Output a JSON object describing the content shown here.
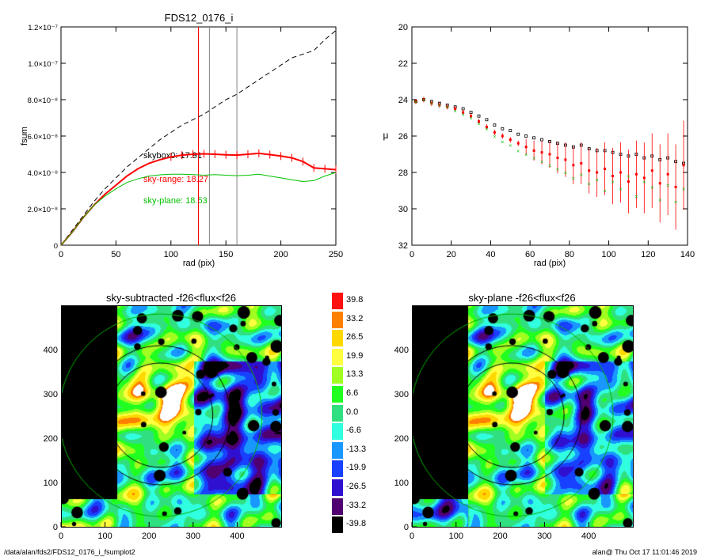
{
  "chart_data": [
    {
      "type": "line",
      "title": "FDS12_0176_i",
      "xlabel": "rad (pix)",
      "ylabel": "fsum",
      "xlim": [
        0,
        250
      ],
      "ylim": [
        0,
        1.2e-07
      ],
      "xticks": [
        "0",
        "50",
        "100",
        "150",
        "200",
        "250"
      ],
      "yticks": [
        {
          "value": 0,
          "label": "0"
        },
        {
          "value": 2e-08,
          "label": "2.0×10⁻⁸"
        },
        {
          "value": 4e-08,
          "label": "4.0×10⁻⁸"
        },
        {
          "value": 6e-08,
          "label": "6.0×10⁻⁸"
        },
        {
          "value": 8e-08,
          "label": "8.0×10⁻⁸"
        },
        {
          "value": 1e-07,
          "label": "1.0×10⁻⁷"
        },
        {
          "value": 1.2e-07,
          "label": "1.2×10⁻⁷"
        }
      ],
      "vlines": [
        {
          "x": 125,
          "color": "#ff0000"
        },
        {
          "x": 135,
          "color": "#808080"
        },
        {
          "x": 160,
          "color": "#808080"
        }
      ],
      "annotations": [
        {
          "text": "skybox0: 17.91",
          "color": "#000000"
        },
        {
          "text": "sky-range: 18.27",
          "color": "#ff0000"
        },
        {
          "text": "sky-plane: 18.53",
          "color": "#00c000"
        }
      ],
      "series": [
        {
          "style": "dashed",
          "color": "#000000",
          "x": [
            0,
            10,
            20,
            30,
            40,
            50,
            60,
            70,
            80,
            90,
            100,
            110,
            120,
            130,
            140,
            150,
            160,
            170,
            180,
            190,
            200,
            210,
            220,
            230,
            240,
            250
          ],
          "y": [
            0,
            8e-09,
            1.6e-08,
            2.4e-08,
            3.1e-08,
            3.7e-08,
            4.3e-08,
            4.8e-08,
            5.3e-08,
            5.8e-08,
            6.2e-08,
            6.6e-08,
            6.9e-08,
            7.2e-08,
            7.6e-08,
            8e-08,
            8.3e-08,
            8.7e-08,
            9.1e-08,
            9.5e-08,
            9.9e-08,
            1.03e-07,
            1.05e-07,
            1.07e-07,
            1.13e-07,
            1.18e-07
          ]
        },
        {
          "style": "errorbar",
          "color": "#ff0000",
          "x": [
            0,
            10,
            20,
            30,
            40,
            50,
            60,
            70,
            80,
            90,
            100,
            110,
            120,
            130,
            140,
            150,
            160,
            170,
            180,
            190,
            200,
            210,
            220,
            230,
            240,
            250
          ],
          "y": [
            0,
            7e-09,
            1.5e-08,
            2.2e-08,
            2.8e-08,
            3.3e-08,
            3.8e-08,
            4.2e-08,
            4.5e-08,
            4.7e-08,
            4.85e-08,
            4.95e-08,
            5e-08,
            5.02e-08,
            5e-08,
            4.97e-08,
            4.95e-08,
            5e-08,
            5.05e-08,
            4.98e-08,
            4.9e-08,
            4.8e-08,
            4.6e-08,
            4.25e-08,
            4.2e-08,
            4.15e-08
          ]
        },
        {
          "style": "solid",
          "color": "#00c000",
          "x": [
            0,
            10,
            20,
            30,
            40,
            50,
            60,
            70,
            80,
            90,
            100,
            110,
            120,
            130,
            140,
            150,
            160,
            170,
            180,
            190,
            200,
            210,
            220,
            230,
            240,
            250
          ],
          "y": [
            0,
            7e-09,
            1.5e-08,
            2.2e-08,
            2.7e-08,
            3.1e-08,
            3.45e-08,
            3.65e-08,
            3.8e-08,
            3.87e-08,
            3.9e-08,
            3.9e-08,
            3.88e-08,
            3.85e-08,
            3.88e-08,
            3.85e-08,
            3.82e-08,
            3.85e-08,
            3.9e-08,
            3.8e-08,
            3.7e-08,
            3.6e-08,
            3.5e-08,
            3.55e-08,
            3.8e-08,
            4e-08
          ]
        }
      ]
    },
    {
      "type": "scatter",
      "xlabel": "rad (pix)",
      "ylabel": "μ",
      "xlim": [
        0,
        140
      ],
      "ylim": [
        32,
        20
      ],
      "xticks": [
        "0",
        "20",
        "40",
        "60",
        "80",
        "100",
        "120",
        "140"
      ],
      "yticks": [
        "20",
        "22",
        "24",
        "26",
        "28",
        "30",
        "32"
      ],
      "series": [
        {
          "color": "#000000",
          "marker": "square",
          "x": [
            2,
            6,
            10,
            14,
            18,
            22,
            26,
            30,
            34,
            38,
            42,
            46,
            50,
            54,
            58,
            62,
            66,
            70,
            74,
            78,
            82,
            86,
            90,
            94,
            98,
            102,
            106,
            110,
            114,
            118,
            122,
            126,
            130,
            134,
            138
          ],
          "y": [
            24.1,
            24.0,
            24.1,
            24.2,
            24.3,
            24.4,
            24.5,
            24.7,
            24.9,
            25.1,
            25.4,
            25.6,
            25.7,
            25.9,
            26.0,
            26.1,
            26.2,
            26.3,
            26.4,
            26.5,
            26.6,
            26.5,
            26.7,
            26.8,
            26.8,
            26.9,
            27.0,
            27.1,
            27.0,
            27.2,
            27.1,
            27.3,
            27.2,
            27.4,
            27.5
          ]
        },
        {
          "color": "#ff0000",
          "marker": "errorbar",
          "x": [
            2,
            6,
            10,
            14,
            18,
            22,
            26,
            30,
            34,
            38,
            42,
            46,
            50,
            54,
            58,
            62,
            66,
            70,
            74,
            78,
            82,
            86,
            90,
            94,
            98,
            102,
            106,
            110,
            114,
            118,
            122,
            126,
            130,
            134,
            138
          ],
          "y": [
            24.1,
            24.0,
            24.2,
            24.3,
            24.4,
            24.5,
            24.7,
            24.9,
            25.2,
            25.5,
            25.8,
            26.0,
            26.2,
            26.4,
            26.6,
            26.8,
            26.9,
            27.0,
            27.2,
            27.3,
            27.6,
            27.5,
            27.9,
            28.0,
            27.8,
            28.2,
            28.0,
            28.5,
            28.1,
            28.3,
            27.9,
            28.6,
            28.1,
            28.8,
            27.6
          ]
        },
        {
          "color": "#00c000",
          "marker": "x",
          "x": [
            2,
            6,
            10,
            14,
            18,
            22,
            26,
            30,
            34,
            38,
            42,
            46,
            50,
            54,
            58,
            62,
            66,
            70,
            74,
            78,
            82,
            86,
            90,
            94,
            98,
            102,
            106,
            110,
            114,
            118,
            122,
            126,
            130,
            134,
            138
          ],
          "y": [
            24.1,
            24.0,
            24.2,
            24.3,
            24.4,
            24.6,
            24.8,
            25.0,
            25.3,
            25.6,
            26.0,
            26.3,
            26.5,
            26.8,
            27.0,
            27.2,
            27.4,
            27.6,
            27.8,
            28.0,
            28.3,
            28.1,
            28.6,
            28.4,
            29.0,
            28.5,
            28.9,
            28.2,
            29.3,
            28.5,
            28.8,
            29.5,
            28.7,
            29.6,
            28.9
          ]
        }
      ]
    },
    {
      "type": "heatmap",
      "title": "sky-subtracted -f26<flux<f26",
      "xlim": [
        0,
        500
      ],
      "ylim": [
        0,
        500
      ],
      "xticks": [
        "0",
        "100",
        "200",
        "300",
        "400"
      ],
      "yticks": [
        "0",
        "100",
        "200",
        "300",
        "400"
      ]
    },
    {
      "type": "heatmap",
      "title": "sky-plane -f26<flux<f26",
      "xlim": [
        0,
        500
      ],
      "ylim": [
        0,
        500
      ],
      "xticks": [
        "0",
        "100",
        "200",
        "300",
        "400"
      ],
      "yticks": [
        "0",
        "100",
        "200",
        "300",
        "400"
      ]
    }
  ],
  "colorbar": {
    "levels": [
      {
        "label": "39.8",
        "color": "#ff1010"
      },
      {
        "label": "33.2",
        "color": "#ff8000"
      },
      {
        "label": "26.5",
        "color": "#ffd800"
      },
      {
        "label": "19.9",
        "color": "#ffff40"
      },
      {
        "label": "13.3",
        "color": "#a0ff20"
      },
      {
        "label": "6.6",
        "color": "#20ff20"
      },
      {
        "label": "0.0",
        "color": "#30e080"
      },
      {
        "label": "-6.6",
        "color": "#30ffe0"
      },
      {
        "label": "-13.3",
        "color": "#1898ff"
      },
      {
        "label": "-19.9",
        "color": "#1840ff"
      },
      {
        "label": "-26.5",
        "color": "#3010d0"
      },
      {
        "label": "-33.2",
        "color": "#500070"
      },
      {
        "label": "-39.8",
        "color": "#000000"
      }
    ]
  },
  "footer": {
    "left": "/data/alan/fds2/FDS12_0176_i_fsumplot2",
    "right": "alan@  Thu Oct 17 11:01:46 2019"
  }
}
